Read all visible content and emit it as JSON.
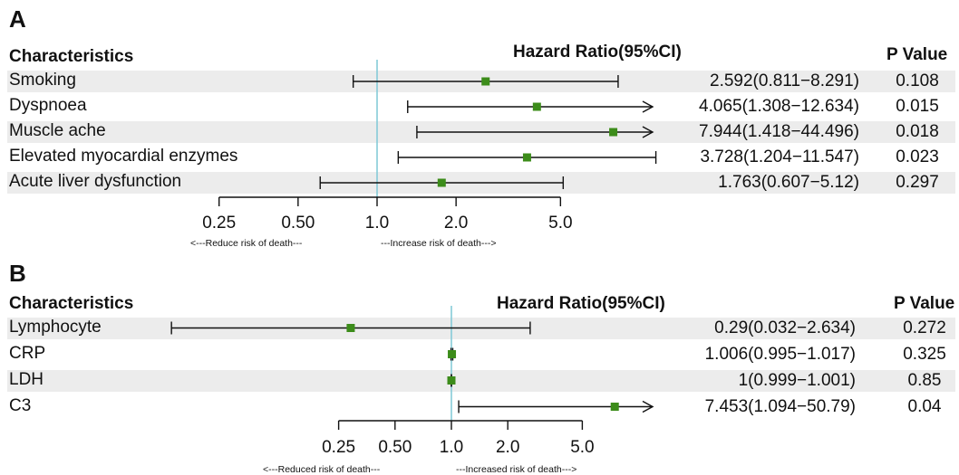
{
  "chart_data": [
    {
      "type": "forest",
      "panel_label": "A",
      "headers": {
        "characteristics": "Characteristics",
        "hr": "Hazard Ratio(95%CI)",
        "p": "P Value"
      },
      "x_scale": "log",
      "ticks": [
        0.25,
        0.5,
        1.0,
        2.0,
        5.0
      ],
      "tick_labels": [
        "0.25",
        "0.50",
        "1.0",
        "2.0",
        "5.0"
      ],
      "reference_line": 1.0,
      "rows": [
        {
          "label": "Smoking",
          "hr": 2.592,
          "lower": 0.811,
          "upper": 8.291,
          "hr_text": "2.592(0.811−8.291)",
          "p": "0.108",
          "arrow_right": false
        },
        {
          "label": "Dyspnoea",
          "hr": 4.065,
          "lower": 1.308,
          "upper": 12.634,
          "hr_text": "4.065(1.308−12.634)",
          "p": "0.015",
          "arrow_right": true
        },
        {
          "label": "Muscle ache",
          "hr": 7.944,
          "lower": 1.418,
          "upper": 44.496,
          "hr_text": "7.944(1.418−44.496)",
          "p": "0.018",
          "arrow_right": true
        },
        {
          "label": "Elevated myocardial enzymes",
          "hr": 3.728,
          "lower": 1.204,
          "upper": 11.547,
          "hr_text": "3.728(1.204−11.547)",
          "p": "0.023",
          "arrow_right": false
        },
        {
          "label": "Acute liver dysfunction",
          "hr": 1.763,
          "lower": 0.607,
          "upper": 5.12,
          "hr_text": "1.763(0.607−5.12)",
          "p": "0.297",
          "arrow_right": false
        }
      ],
      "caption_left": "<---Reduce risk of death---",
      "caption_right": "---Increase risk of death--->"
    },
    {
      "type": "forest",
      "panel_label": "B",
      "headers": {
        "characteristics": "Characteristics",
        "hr": "Hazard Ratio(95%CI)",
        "p": "P Value"
      },
      "x_scale": "log",
      "ticks": [
        0.25,
        0.5,
        1.0,
        2.0,
        5.0
      ],
      "tick_labels": [
        "0.25",
        "0.50",
        "1.0",
        "2.0",
        "5.0"
      ],
      "reference_line": 1.0,
      "rows": [
        {
          "label": "Lymphocyte",
          "hr": 0.29,
          "lower": 0.032,
          "upper": 2.634,
          "hr_text": "0.29(0.032−2.634)",
          "p": "0.272",
          "arrow_right": false
        },
        {
          "label": "CRP",
          "hr": 1.006,
          "lower": 0.995,
          "upper": 1.017,
          "hr_text": "1.006(0.995−1.017)",
          "p": "0.325",
          "arrow_right": false
        },
        {
          "label": "LDH",
          "hr": 1.0,
          "lower": 0.999,
          "upper": 1.001,
          "hr_text": "1(0.999−1.001)",
          "p": "0.85",
          "arrow_right": false
        },
        {
          "label": "C3",
          "hr": 7.453,
          "lower": 1.094,
          "upper": 50.79,
          "hr_text": "7.453(1.094−50.79)",
          "p": "0.04",
          "arrow_right": true
        }
      ],
      "caption_left": "<---Reduced risk of death---",
      "caption_right": "---Increased risk of death--->"
    }
  ],
  "colors": {
    "marker": "#3c8c1a",
    "reference": "#7ec8d6",
    "stripe": "#ececec",
    "line": "#111111"
  }
}
